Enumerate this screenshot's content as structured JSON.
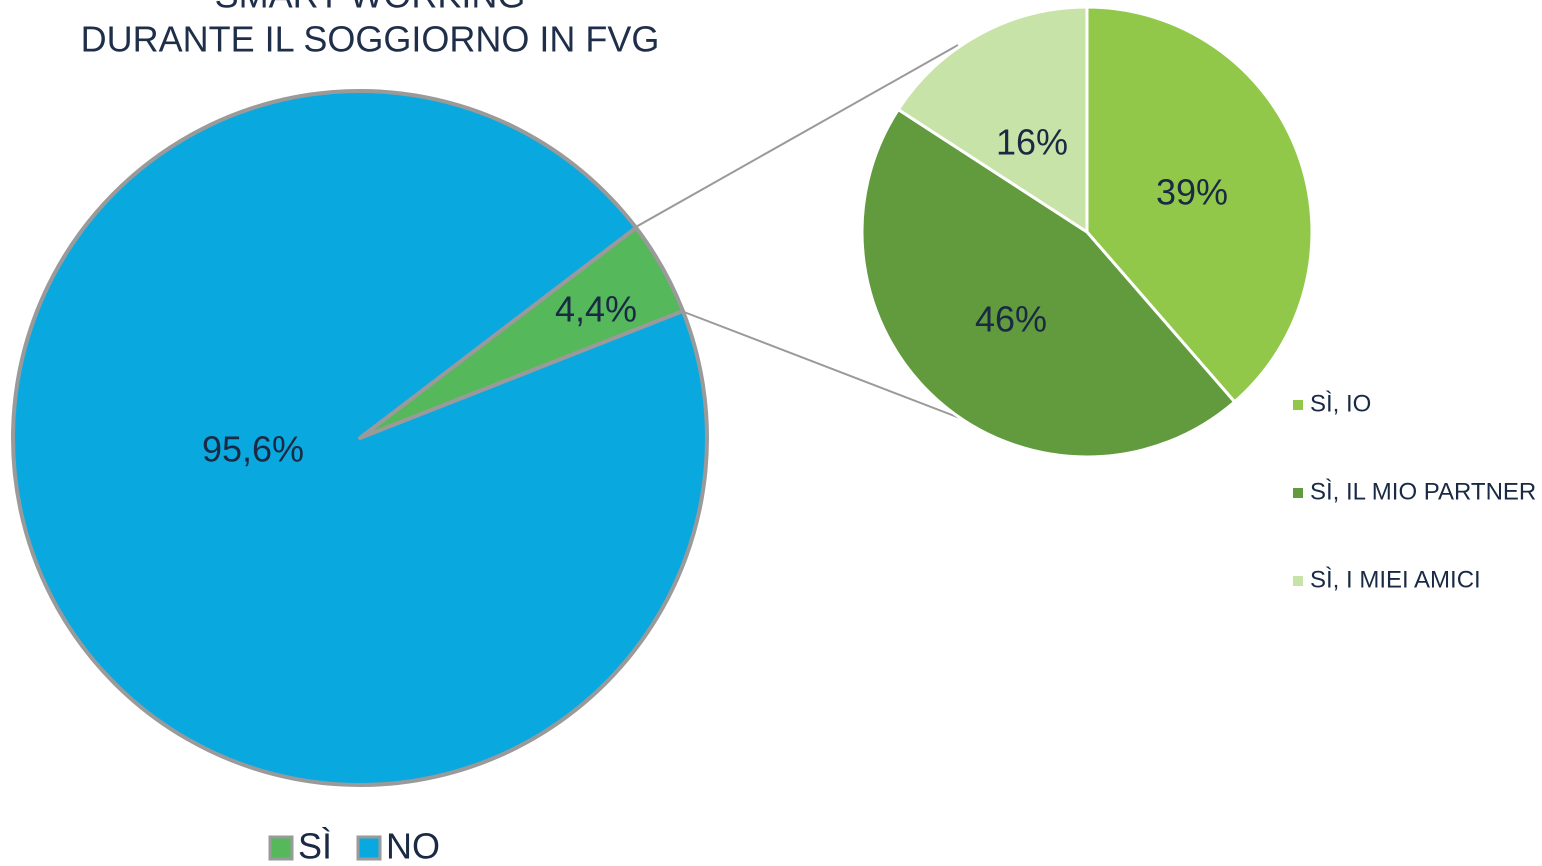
{
  "chart_data": [
    {
      "type": "pie",
      "title": [
        "SMART WORKING",
        "DURANTE IL SOGGIORNO IN FVG"
      ],
      "categories": [
        "SÌ",
        "NO"
      ],
      "values": [
        4.4,
        95.6
      ],
      "value_labels": [
        "4,4%",
        "95,6%"
      ],
      "colors": [
        "#55b85a",
        "#09a9e0"
      ],
      "legend": "bottom"
    },
    {
      "type": "pie",
      "categories": [
        "SÌ, IO",
        "SÌ, IL MIO PARTNER",
        "SÌ, I MIEI AMICI"
      ],
      "values": [
        39,
        46,
        16
      ],
      "value_labels": [
        "39%",
        "46%",
        "16%"
      ],
      "colors": [
        "#92c84a",
        "#629a3e",
        "#c8e3a7"
      ],
      "legend": "right"
    }
  ]
}
